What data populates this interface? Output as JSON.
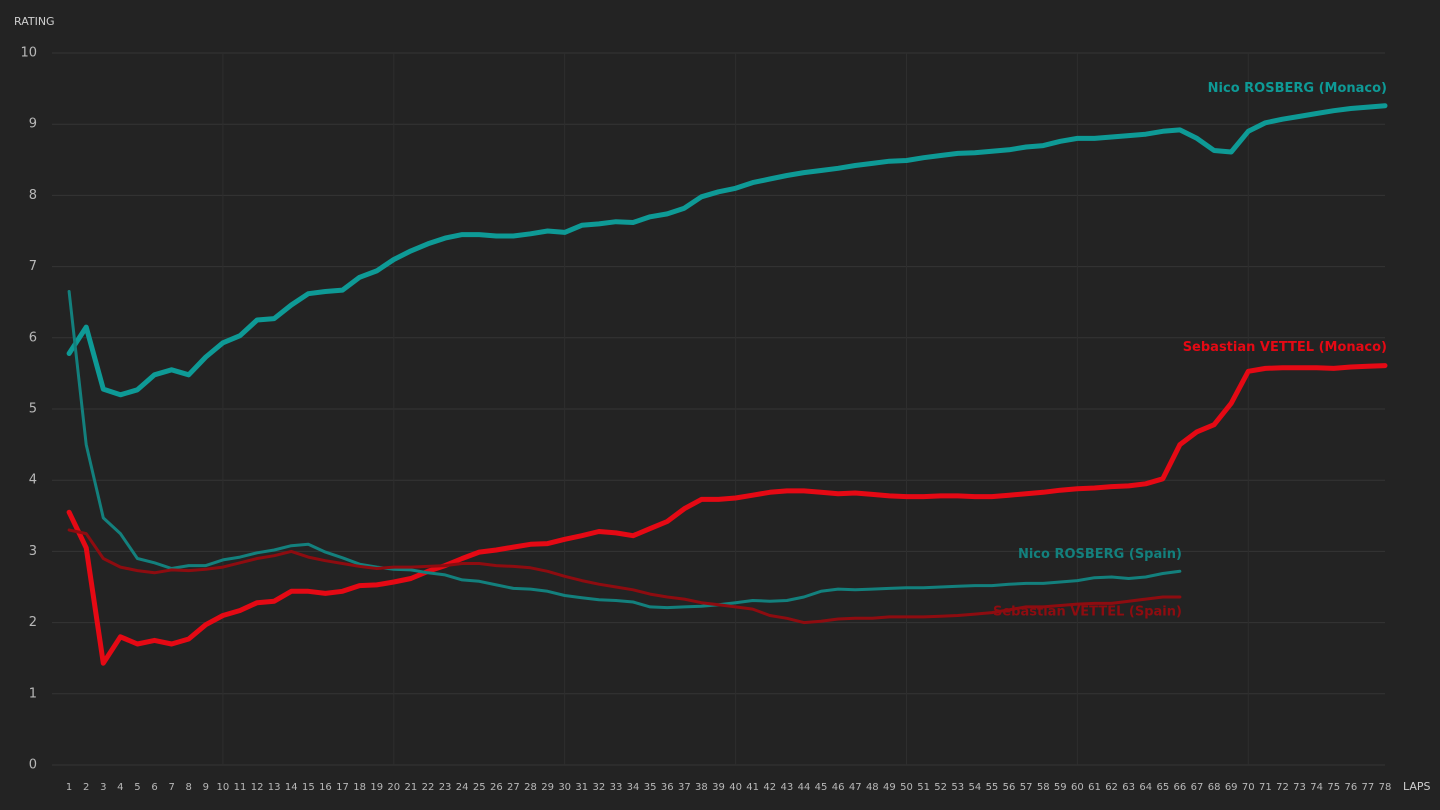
{
  "chart_data": {
    "type": "line",
    "y_label": "RATING",
    "x_label": "LAPS",
    "x": [
      1,
      2,
      3,
      4,
      5,
      6,
      7,
      8,
      9,
      10,
      11,
      12,
      13,
      14,
      15,
      16,
      17,
      18,
      19,
      20,
      21,
      22,
      23,
      24,
      25,
      26,
      27,
      28,
      29,
      30,
      31,
      32,
      33,
      34,
      35,
      36,
      37,
      38,
      39,
      40,
      41,
      42,
      43,
      44,
      45,
      46,
      47,
      48,
      49,
      50,
      51,
      52,
      53,
      54,
      55,
      56,
      57,
      58,
      59,
      60,
      61,
      62,
      63,
      64,
      65,
      66,
      67,
      68,
      69,
      70,
      71,
      72,
      73,
      74,
      75,
      76,
      77,
      78
    ],
    "xlim": [
      0,
      78
    ],
    "xticks": [
      1,
      2,
      3,
      4,
      5,
      6,
      7,
      8,
      9,
      10,
      11,
      12,
      13,
      14,
      15,
      16,
      17,
      18,
      19,
      20,
      21,
      22,
      23,
      24,
      25,
      26,
      27,
      28,
      29,
      30,
      31,
      32,
      33,
      34,
      35,
      36,
      37,
      38,
      39,
      40,
      41,
      42,
      43,
      44,
      45,
      46,
      47,
      48,
      49,
      50,
      51,
      52,
      53,
      54,
      55,
      56,
      57,
      58,
      59,
      60,
      61,
      62,
      63,
      64,
      65,
      66,
      67,
      68,
      69,
      70,
      71,
      72,
      73,
      74,
      75,
      76,
      77,
      78
    ],
    "ylim": [
      0,
      10
    ],
    "yticks": [
      0,
      1,
      2,
      3,
      4,
      5,
      6,
      7,
      8,
      9,
      10
    ],
    "grid": true,
    "series": [
      {
        "name": "Nico ROSBERG (Monaco)",
        "color": "#0e9a96",
        "values": [
          5.78,
          6.15,
          5.28,
          5.2,
          5.27,
          5.48,
          5.55,
          5.48,
          5.73,
          5.93,
          6.03,
          6.25,
          6.27,
          6.46,
          6.62,
          6.65,
          6.67,
          6.85,
          6.94,
          7.1,
          7.22,
          7.32,
          7.4,
          7.45,
          7.45,
          7.43,
          7.43,
          7.46,
          7.5,
          7.48,
          7.58,
          7.6,
          7.63,
          7.62,
          7.7,
          7.74,
          7.82,
          7.98,
          8.05,
          8.1,
          8.18,
          8.23,
          8.28,
          8.32,
          8.35,
          8.38,
          8.42,
          8.45,
          8.48,
          8.49,
          8.53,
          8.56,
          8.59,
          8.6,
          8.62,
          8.64,
          8.68,
          8.7,
          8.76,
          8.8,
          8.8,
          8.82,
          8.84,
          8.86,
          8.9,
          8.92,
          8.8,
          8.63,
          8.61,
          8.9,
          9.02,
          9.07,
          9.11,
          9.15,
          9.19,
          9.22,
          9.24,
          9.26
        ]
      },
      {
        "name": "Sebastian VETTEL (Monaco)",
        "color": "#e50914",
        "values": [
          3.55,
          3.05,
          1.43,
          1.8,
          1.7,
          1.75,
          1.7,
          1.77,
          1.97,
          2.1,
          2.17,
          2.28,
          2.3,
          2.44,
          2.44,
          2.41,
          2.44,
          2.52,
          2.53,
          2.57,
          2.62,
          2.72,
          2.8,
          2.9,
          2.99,
          3.02,
          3.06,
          3.1,
          3.11,
          3.17,
          3.22,
          3.28,
          3.26,
          3.22,
          3.32,
          3.42,
          3.6,
          3.73,
          3.73,
          3.75,
          3.79,
          3.83,
          3.85,
          3.85,
          3.83,
          3.81,
          3.82,
          3.8,
          3.78,
          3.77,
          3.77,
          3.78,
          3.78,
          3.77,
          3.77,
          3.79,
          3.81,
          3.83,
          3.86,
          3.88,
          3.89,
          3.91,
          3.92,
          3.95,
          4.02,
          4.5,
          4.68,
          4.78,
          5.08,
          5.53,
          5.57,
          5.58,
          5.58,
          5.58,
          5.57,
          5.59,
          5.6,
          5.61
        ]
      },
      {
        "name": "Nico ROSBERG (Spain)",
        "color": "#13807d",
        "values": [
          6.65,
          4.5,
          3.47,
          3.25,
          2.9,
          2.84,
          2.76,
          2.8,
          2.8,
          2.88,
          2.92,
          2.98,
          3.02,
          3.08,
          3.1,
          2.99,
          2.91,
          2.82,
          2.78,
          2.75,
          2.74,
          2.7,
          2.67,
          2.6,
          2.58,
          2.53,
          2.48,
          2.47,
          2.44,
          2.38,
          2.35,
          2.32,
          2.31,
          2.29,
          2.22,
          2.21,
          2.22,
          2.23,
          2.25,
          2.28,
          2.31,
          2.3,
          2.31,
          2.36,
          2.44,
          2.47,
          2.46,
          2.47,
          2.48,
          2.49,
          2.49,
          2.5,
          2.51,
          2.52,
          2.52,
          2.54,
          2.55,
          2.55,
          2.57,
          2.59,
          2.63,
          2.64,
          2.62,
          2.64,
          2.69,
          2.72,
          null,
          null,
          null,
          null,
          null,
          null,
          null,
          null,
          null,
          null,
          null,
          null
        ]
      },
      {
        "name": "Sebastian VETTEL (Spain)",
        "color": "#8e0c10",
        "values": [
          3.3,
          3.25,
          2.9,
          2.78,
          2.73,
          2.7,
          2.74,
          2.73,
          2.75,
          2.78,
          2.84,
          2.9,
          2.94,
          3.0,
          2.92,
          2.87,
          2.83,
          2.79,
          2.76,
          2.78,
          2.78,
          2.79,
          2.8,
          2.83,
          2.83,
          2.8,
          2.79,
          2.77,
          2.72,
          2.65,
          2.59,
          2.54,
          2.5,
          2.46,
          2.4,
          2.36,
          2.33,
          2.28,
          2.25,
          2.22,
          2.19,
          2.1,
          2.06,
          2.0,
          2.02,
          2.05,
          2.06,
          2.06,
          2.08,
          2.08,
          2.08,
          2.09,
          2.1,
          2.12,
          2.14,
          2.18,
          2.22,
          2.22,
          2.24,
          2.26,
          2.27,
          2.27,
          2.3,
          2.33,
          2.36,
          2.36,
          null,
          null,
          null,
          null,
          null,
          null,
          null,
          null,
          null,
          null,
          null,
          null
        ]
      }
    ]
  }
}
